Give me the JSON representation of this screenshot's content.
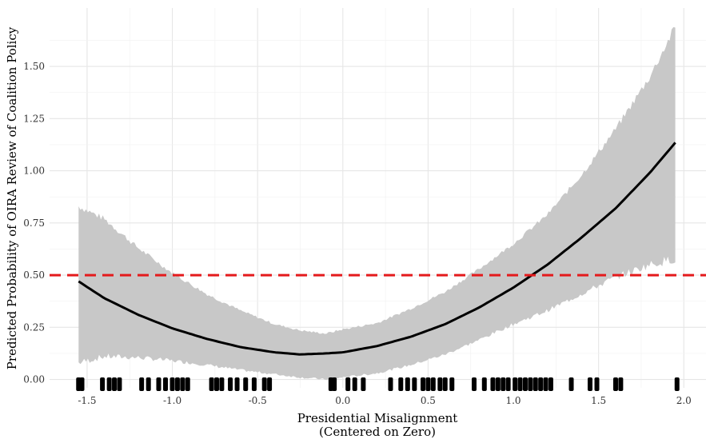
{
  "chart_data": {
    "type": "line",
    "xlabel": "Presidential Misalignment",
    "xlabel_line2": "(Centered on Zero)",
    "ylabel": "Predicted Probability of OIRA Review of Coalition Policy",
    "xlim": [
      -1.72,
      2.13
    ],
    "ylim": [
      -0.04,
      1.78
    ],
    "x_ticks": [
      -1.5,
      -1.0,
      -0.5,
      0.0,
      0.5,
      1.0,
      1.5,
      2.0
    ],
    "x_tick_labels": [
      "-1.5",
      "-1.0",
      "-0.5",
      "0.0",
      "0.5",
      "1.0",
      "1.5",
      "2.0"
    ],
    "y_ticks": [
      0.0,
      0.25,
      0.5,
      0.75,
      1.0,
      1.25,
      1.5
    ],
    "y_tick_labels": [
      "0.00",
      "0.25",
      "0.50",
      "0.75",
      "1.00",
      "1.25",
      "1.50"
    ],
    "grid": true,
    "reference_line": {
      "y": 0.5,
      "style": "dashed",
      "color": "#e41a1c"
    },
    "fit_curve": {
      "x": [
        -1.55,
        -1.4,
        -1.2,
        -1.0,
        -0.8,
        -0.6,
        -0.4,
        -0.25,
        -0.1,
        0.0,
        0.2,
        0.4,
        0.6,
        0.8,
        1.0,
        1.2,
        1.4,
        1.6,
        1.8,
        1.95
      ],
      "y": [
        0.47,
        0.39,
        0.31,
        0.245,
        0.195,
        0.155,
        0.13,
        0.12,
        0.125,
        0.13,
        0.16,
        0.205,
        0.265,
        0.345,
        0.44,
        0.55,
        0.68,
        0.82,
        0.99,
        1.135
      ]
    },
    "confidence_band": {
      "x": [
        -1.55,
        -1.4,
        -1.2,
        -1.0,
        -0.8,
        -0.6,
        -0.4,
        -0.25,
        -0.1,
        0.0,
        0.2,
        0.4,
        0.6,
        0.8,
        1.0,
        1.2,
        1.4,
        1.6,
        1.8,
        1.95
      ],
      "lower": [
        0.08,
        0.11,
        0.105,
        0.09,
        0.07,
        0.045,
        0.025,
        0.01,
        0.0,
        0.01,
        0.03,
        0.07,
        0.12,
        0.19,
        0.265,
        0.33,
        0.41,
        0.49,
        0.55,
        0.58
      ],
      "upper": [
        0.83,
        0.77,
        0.63,
        0.51,
        0.41,
        0.33,
        0.265,
        0.235,
        0.22,
        0.24,
        0.27,
        0.34,
        0.42,
        0.53,
        0.65,
        0.79,
        0.98,
        1.2,
        1.45,
        1.69
      ]
    },
    "rug_x": [
      -1.55,
      -1.53,
      -1.41,
      -1.37,
      -1.34,
      -1.31,
      -1.18,
      -1.14,
      -1.08,
      -1.04,
      -1.0,
      -0.97,
      -0.94,
      -0.91,
      -0.77,
      -0.74,
      -0.71,
      -0.66,
      -0.62,
      -0.57,
      -0.52,
      -0.46,
      -0.43,
      -0.07,
      -0.05,
      0.03,
      0.07,
      0.12,
      0.28,
      0.34,
      0.38,
      0.42,
      0.47,
      0.5,
      0.53,
      0.57,
      0.6,
      0.64,
      0.77,
      0.83,
      0.88,
      0.91,
      0.94,
      0.97,
      1.01,
      1.04,
      1.07,
      1.1,
      1.13,
      1.16,
      1.19,
      1.22,
      1.34,
      1.45,
      1.49,
      1.6,
      1.63,
      1.96
    ],
    "colors": {
      "curve": "#000000",
      "band": "#c8c8c8",
      "rug": "#000000"
    }
  }
}
